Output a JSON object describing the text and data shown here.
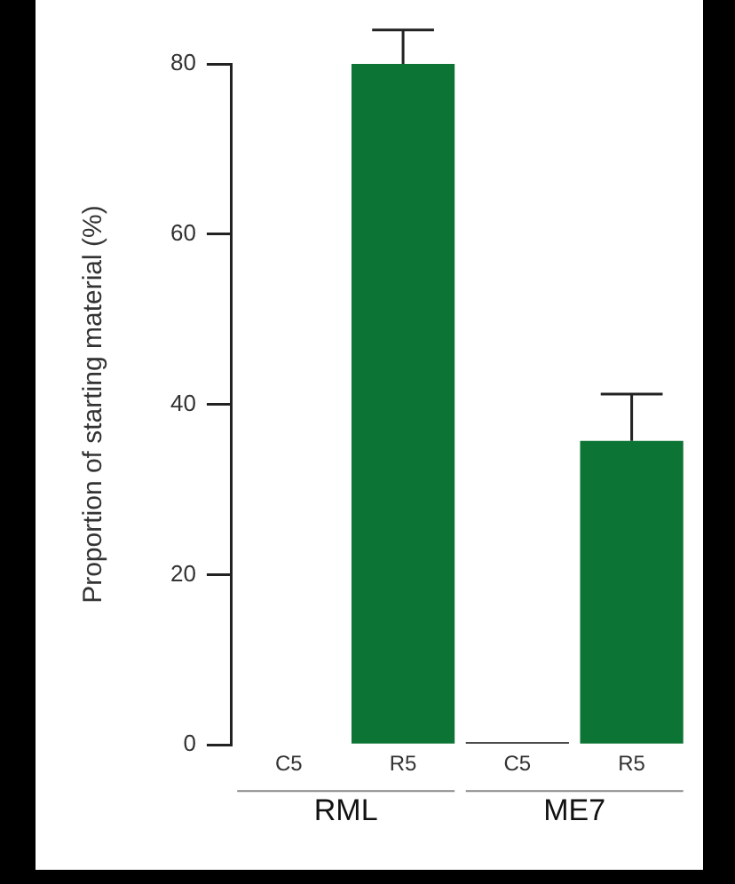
{
  "chart_data": {
    "type": "bar",
    "ylabel": "Proportion of starting material (%)",
    "categories": [
      "C5",
      "R5",
      "C5",
      "R5"
    ],
    "values": [
      0,
      80,
      0.3,
      35.7
    ],
    "colors": [
      "#111111",
      "#0c7434",
      "#111111",
      "#0c7434"
    ],
    "errors": [
      null,
      4,
      null,
      5.5
    ],
    "ylim": [
      0,
      80
    ],
    "yticks": [
      0,
      20,
      40,
      60,
      80
    ],
    "grid": false,
    "legend": false,
    "annotations": [
      "RML",
      "ME7"
    ]
  }
}
